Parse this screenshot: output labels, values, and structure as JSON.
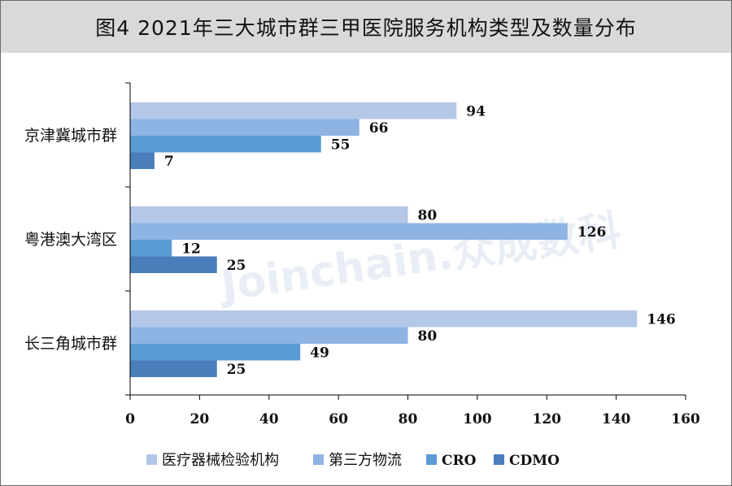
{
  "chart_data": {
    "type": "bar",
    "orientation": "horizontal",
    "title": "图4  2021年三大城市群三甲医院服务机构类型及数量分布",
    "categories": [
      "京津冀城市群",
      "粤港澳大湾区",
      "长三角城市群"
    ],
    "series": [
      {
        "name": "医疗器械检验机构",
        "values": [
          94,
          80,
          146
        ],
        "color": "#b4c7e7"
      },
      {
        "name": "第三方物流",
        "values": [
          66,
          126,
          80
        ],
        "color": "#8eb4e3"
      },
      {
        "name": "CRO",
        "values": [
          55,
          12,
          49
        ],
        "color": "#5b9bd5"
      },
      {
        "name": "CDMO",
        "values": [
          7,
          25,
          25
        ],
        "color": "#4a7ebb"
      }
    ],
    "xlim": [
      0,
      160
    ],
    "xticks": [
      0,
      20,
      40,
      60,
      80,
      100,
      120,
      140,
      160
    ],
    "xlabel": "",
    "ylabel": "",
    "grid": false,
    "legend_position": "bottom",
    "data_labels": true
  },
  "watermark": {
    "text": "Joinchain.众成数科"
  }
}
